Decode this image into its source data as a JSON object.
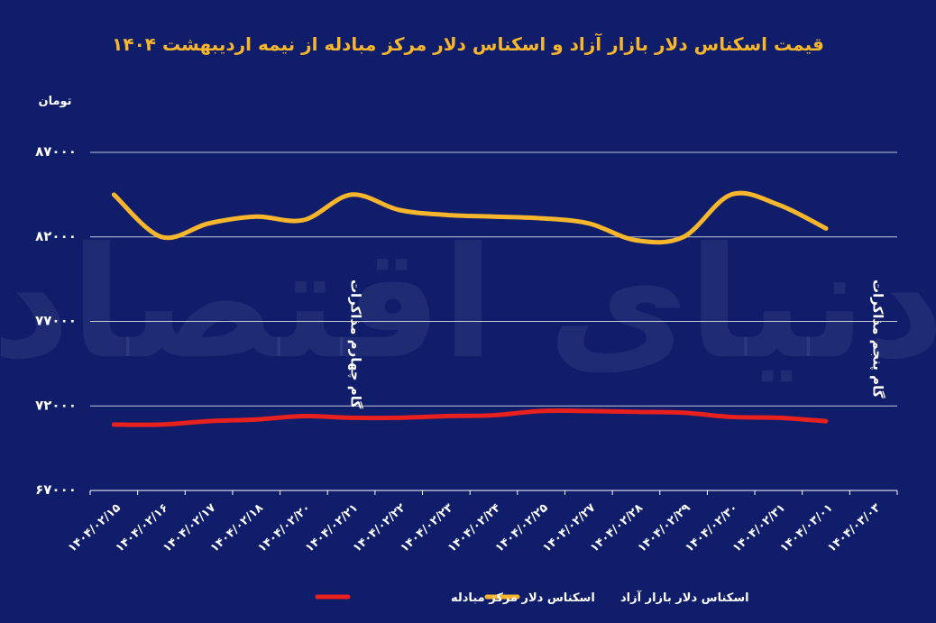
{
  "chart_data": {
    "type": "line",
    "title": "قیمت اسکناس دلار بازار آزاد و اسکناس دلار مرکز مبادله از نیمه اردیبهشت ۱۴۰۴",
    "ylabel": "تومان",
    "xlabel": "",
    "ylim": [
      67000,
      87000
    ],
    "yticks": [
      "۶۷۰۰۰",
      "۷۲۰۰۰",
      "۷۷۰۰۰",
      "۸۲۰۰۰",
      "۸۷۰۰۰"
    ],
    "ytick_values": [
      67000,
      72000,
      77000,
      82000,
      87000
    ],
    "grid": true,
    "legend": "bottom-center",
    "categories": [
      "۱۴۰۴/۰۲/۱۵",
      "۱۴۰۴/۰۲/۱۶",
      "۱۴۰۴/۰۲/۱۷",
      "۱۴۰۴/۰۲/۱۸",
      "۱۴۰۴/۰۲/۲۰",
      "۱۴۰۴/۰۲/۲۱",
      "۱۴۰۴/۰۲/۲۲",
      "۱۴۰۴/۰۲/۲۳",
      "۱۴۰۴/۰۲/۲۴",
      "۱۴۰۴/۰۲/۲۵",
      "۱۴۰۴/۰۲/۲۷",
      "۱۴۰۴/۰۲/۲۸",
      "۱۴۰۴/۰۲/۲۹",
      "۱۴۰۴/۰۲/۳۰",
      "۱۴۰۴/۰۲/۳۱",
      "۱۴۰۴/۰۳/۰۱",
      "۱۴۰۴/۰۳/۰۳"
    ],
    "series": [
      {
        "name": "اسکناس دلار بازار آزاد",
        "color": "#f7b62c",
        "values": [
          84500,
          82000,
          82800,
          83200,
          83000,
          84500,
          83600,
          83300,
          83200,
          83100,
          82800,
          81800,
          82000,
          84500,
          83900,
          82500,
          null
        ]
      },
      {
        "name": "اسکناس دلار مرکز مبادله",
        "color": "#e8201e",
        "values": [
          70900,
          70900,
          71100,
          71200,
          71400,
          71300,
          71300,
          71400,
          71450,
          71700,
          71700,
          71650,
          71600,
          71350,
          71300,
          71100,
          null
        ]
      }
    ],
    "annotations": [
      {
        "text": "گام چهارم مذاکرات",
        "at": "۱۴۰۴/۰۲/۲۱"
      },
      {
        "text": "گام پنجم مذاکرات",
        "at": "۱۴۰۴/۰۳/۰۳"
      }
    ]
  },
  "watermark": "دنیای اقتصاد",
  "colors": {
    "background": "#0f1d6a",
    "title": "#f7b62c",
    "axis_text": "#ffffff",
    "grid": "#ffffff"
  }
}
